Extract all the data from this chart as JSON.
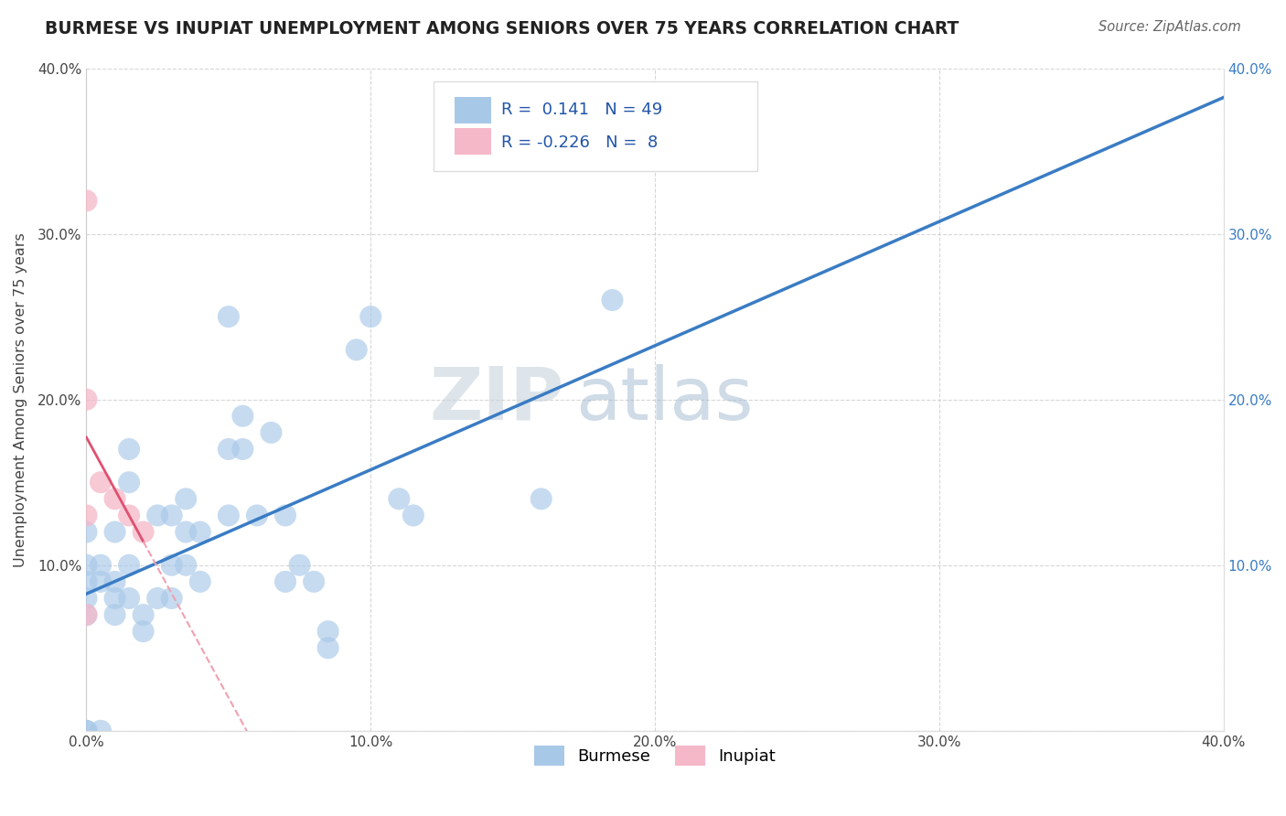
{
  "title": "BURMESE VS INUPIAT UNEMPLOYMENT AMONG SENIORS OVER 75 YEARS CORRELATION CHART",
  "source": "Source: ZipAtlas.com",
  "ylabel": "Unemployment Among Seniors over 75 years",
  "xlim": [
    0.0,
    0.4
  ],
  "ylim": [
    0.0,
    0.4
  ],
  "xtick_vals": [
    0.0,
    0.1,
    0.2,
    0.3,
    0.4
  ],
  "xtick_labels": [
    "0.0%",
    "10.0%",
    "20.0%",
    "30.0%",
    "40.0%"
  ],
  "ytick_vals": [
    0.0,
    0.1,
    0.2,
    0.3,
    0.4
  ],
  "ytick_labels": [
    "",
    "10.0%",
    "20.0%",
    "30.0%",
    "40.0%"
  ],
  "ytick_right_labels": [
    "",
    "10.0%",
    "20.0%",
    "30.0%",
    "40.0%"
  ],
  "legend_burmese_R": "0.141",
  "legend_burmese_N": "49",
  "legend_inupiat_R": "-0.226",
  "legend_inupiat_N": "8",
  "burmese_color": "#a8c8e8",
  "inupiat_color": "#f5b8c8",
  "burmese_line_color": "#3a7cc4",
  "inupiat_line_color": "#e05070",
  "inupiat_dash_color": "#f0a0b0",
  "watermark_zip": "ZIP",
  "watermark_atlas": "atlas",
  "burmese_points": [
    [
      0.0,
      0.0
    ],
    [
      0.0,
      0.0
    ],
    [
      0.0,
      0.07
    ],
    [
      0.0,
      0.1
    ],
    [
      0.0,
      0.09
    ],
    [
      0.0,
      0.12
    ],
    [
      0.0,
      0.08
    ],
    [
      0.005,
      0.09
    ],
    [
      0.005,
      0.1
    ],
    [
      0.005,
      0.0
    ],
    [
      0.01,
      0.09
    ],
    [
      0.01,
      0.07
    ],
    [
      0.01,
      0.12
    ],
    [
      0.01,
      0.08
    ],
    [
      0.015,
      0.08
    ],
    [
      0.015,
      0.1
    ],
    [
      0.015,
      0.15
    ],
    [
      0.015,
      0.17
    ],
    [
      0.02,
      0.07
    ],
    [
      0.02,
      0.06
    ],
    [
      0.025,
      0.08
    ],
    [
      0.025,
      0.13
    ],
    [
      0.03,
      0.13
    ],
    [
      0.03,
      0.1
    ],
    [
      0.03,
      0.08
    ],
    [
      0.035,
      0.12
    ],
    [
      0.035,
      0.1
    ],
    [
      0.035,
      0.14
    ],
    [
      0.04,
      0.12
    ],
    [
      0.04,
      0.09
    ],
    [
      0.05,
      0.13
    ],
    [
      0.05,
      0.17
    ],
    [
      0.05,
      0.25
    ],
    [
      0.055,
      0.17
    ],
    [
      0.055,
      0.19
    ],
    [
      0.06,
      0.13
    ],
    [
      0.065,
      0.18
    ],
    [
      0.07,
      0.13
    ],
    [
      0.07,
      0.09
    ],
    [
      0.075,
      0.1
    ],
    [
      0.08,
      0.09
    ],
    [
      0.085,
      0.05
    ],
    [
      0.085,
      0.06
    ],
    [
      0.095,
      0.23
    ],
    [
      0.1,
      0.25
    ],
    [
      0.11,
      0.14
    ],
    [
      0.115,
      0.13
    ],
    [
      0.16,
      0.14
    ],
    [
      0.185,
      0.26
    ]
  ],
  "inupiat_points": [
    [
      0.0,
      0.32
    ],
    [
      0.0,
      0.2
    ],
    [
      0.0,
      0.13
    ],
    [
      0.0,
      0.07
    ],
    [
      0.005,
      0.15
    ],
    [
      0.01,
      0.14
    ],
    [
      0.015,
      0.13
    ],
    [
      0.02,
      0.12
    ]
  ]
}
